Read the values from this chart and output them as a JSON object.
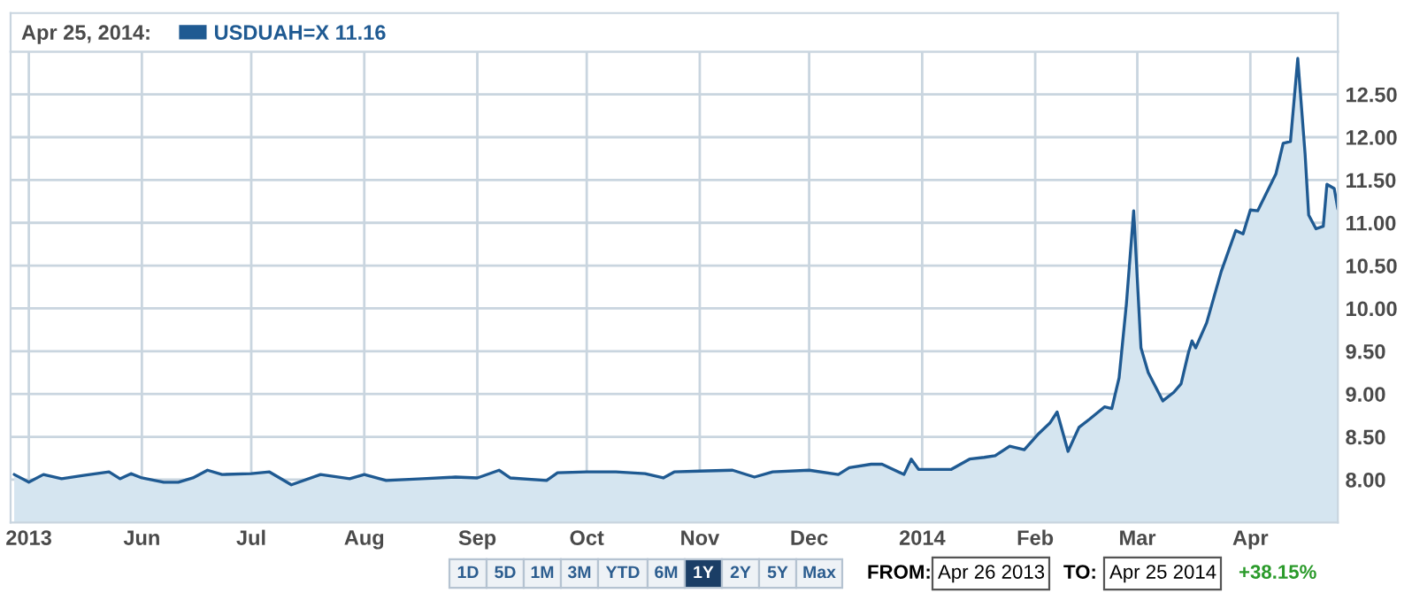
{
  "chart_data": {
    "type": "area",
    "title": "Apr 25, 2014:",
    "x": [
      "2013-04-27",
      "2013-05-01",
      "2013-05-05",
      "2013-05-10",
      "2013-05-16",
      "2013-05-23",
      "2013-05-26",
      "2013-05-29",
      "2013-06-01",
      "2013-06-07",
      "2013-06-11",
      "2013-06-15",
      "2013-06-19",
      "2013-06-23",
      "2013-07-01",
      "2013-07-06",
      "2013-07-12",
      "2013-07-20",
      "2013-07-28",
      "2013-08-01",
      "2013-08-07",
      "2013-08-17",
      "2013-08-26",
      "2013-09-01",
      "2013-09-07",
      "2013-09-10",
      "2013-09-20",
      "2013-09-23",
      "2013-10-01",
      "2013-10-09",
      "2013-10-17",
      "2013-10-22",
      "2013-10-25",
      "2013-11-01",
      "2013-11-10",
      "2013-11-16",
      "2013-11-21",
      "2013-12-01",
      "2013-12-09",
      "2013-12-12",
      "2013-12-18",
      "2013-12-21",
      "2013-12-27",
      "2013-12-29",
      "2013-12-31",
      "2014-01-09",
      "2014-01-14",
      "2014-01-18",
      "2014-01-21",
      "2014-01-25",
      "2014-01-29",
      "2014-02-02",
      "2014-02-05",
      "2014-02-07",
      "2014-02-10",
      "2014-02-13",
      "2014-02-16",
      "2014-02-20",
      "2014-02-22",
      "2014-02-24",
      "2014-02-26",
      "2014-02-28",
      "2014-03-02",
      "2014-03-04",
      "2014-03-08",
      "2014-03-11",
      "2014-03-13",
      "2014-03-15",
      "2014-03-16",
      "2014-03-17",
      "2014-03-20",
      "2014-03-24",
      "2014-03-28",
      "2014-03-30",
      "2014-04-01",
      "2014-04-03",
      "2014-04-08",
      "2014-04-10",
      "2014-04-12",
      "2014-04-14",
      "2014-04-16",
      "2014-04-17",
      "2014-04-19",
      "2014-04-21",
      "2014-04-22",
      "2014-04-24",
      "2014-04-25"
    ],
    "series": [
      {
        "name": "USDUAH=X 11.16",
        "color": "#1f5a92",
        "values": [
          8.06,
          7.97,
          8.06,
          8.01,
          8.05,
          8.09,
          8.01,
          8.07,
          8.02,
          7.97,
          7.97,
          8.02,
          8.11,
          8.06,
          8.07,
          8.09,
          7.94,
          8.06,
          8.01,
          8.06,
          7.99,
          8.01,
          8.03,
          8.02,
          8.11,
          8.02,
          7.99,
          8.08,
          8.09,
          8.09,
          8.07,
          8.02,
          8.09,
          8.1,
          8.11,
          8.03,
          8.09,
          8.11,
          8.06,
          8.14,
          8.18,
          8.18,
          8.06,
          8.24,
          8.12,
          8.12,
          8.24,
          8.26,
          8.28,
          8.39,
          8.35,
          8.54,
          8.66,
          8.79,
          8.33,
          8.61,
          8.71,
          8.85,
          8.83,
          9.19,
          10.05,
          11.14,
          9.54,
          9.25,
          8.92,
          9.02,
          9.12,
          9.48,
          9.62,
          9.54,
          9.83,
          10.43,
          10.91,
          10.87,
          11.15,
          11.14,
          11.57,
          11.93,
          11.95,
          12.92,
          11.81,
          11.09,
          10.93,
          10.96,
          11.45,
          11.4,
          11.16
        ]
      }
    ],
    "xlim": [
      "2013-04-26",
      "2014-04-25"
    ],
    "xticks": [
      {
        "value": "2013-05-01",
        "label": "2013"
      },
      {
        "value": "2013-06-01",
        "label": "Jun"
      },
      {
        "value": "2013-07-01",
        "label": "Jul"
      },
      {
        "value": "2013-08-01",
        "label": "Aug"
      },
      {
        "value": "2013-09-01",
        "label": "Sep"
      },
      {
        "value": "2013-10-01",
        "label": "Oct"
      },
      {
        "value": "2013-11-01",
        "label": "Nov"
      },
      {
        "value": "2013-12-01",
        "label": "Dec"
      },
      {
        "value": "2014-01-01",
        "label": "2014"
      },
      {
        "value": "2014-02-01",
        "label": "Feb"
      },
      {
        "value": "2014-03-01",
        "label": "Mar"
      },
      {
        "value": "2014-04-01",
        "label": "Apr"
      }
    ],
    "ylim": [
      7.5,
      13.0
    ],
    "yticks": [
      {
        "value": 8,
        "label": "8.00"
      },
      {
        "value": 8.5,
        "label": "8.50"
      },
      {
        "value": 9,
        "label": "9.00"
      },
      {
        "value": 9.5,
        "label": "9.50"
      },
      {
        "value": 10,
        "label": "10.00"
      },
      {
        "value": 10.5,
        "label": "10.50"
      },
      {
        "value": 11,
        "label": "11.00"
      },
      {
        "value": 11.5,
        "label": "11.50"
      },
      {
        "value": 12,
        "label": "12.00"
      },
      {
        "value": 12.5,
        "label": "12.50"
      }
    ],
    "grid": true,
    "legend": "top left",
    "marker": "none",
    "line_style": "solid",
    "annotations": [
      "1D",
      "5D",
      "1M",
      "3M",
      "YTD",
      "6M",
      "1Y",
      "2Y",
      "5Y",
      "Max",
      "FROM:",
      "Apr 26 2013",
      "TO:",
      "Apr 25 2014",
      "+38.15%"
    ]
  }
}
